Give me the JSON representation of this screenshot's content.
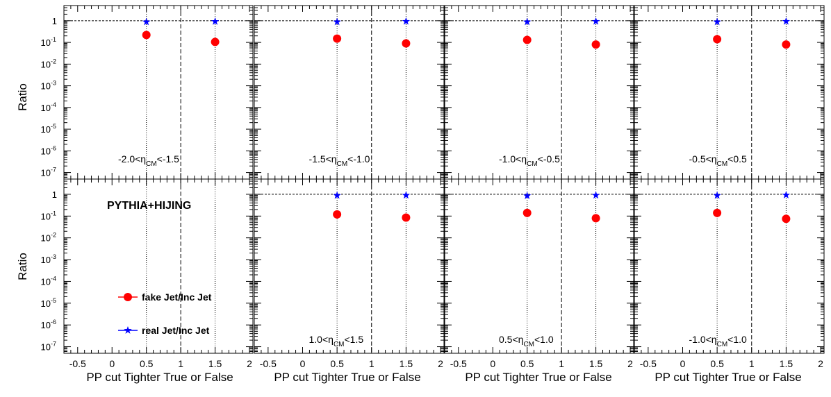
{
  "chart_data": {
    "type": "scatter",
    "layout": "2 rows x 4 columns, shared axes",
    "xlabel": "PP cut Tighter True or False",
    "ylabel": "Ratio",
    "xlim": [
      -0.7,
      2.05
    ],
    "ylim": [
      5e-08,
      5
    ],
    "xscale": "linear",
    "yscale": "log",
    "xticks": [
      -0.5,
      0,
      0.5,
      1,
      1.5,
      2
    ],
    "xtick_labels": [
      "-0.5",
      "0",
      "0.5",
      "1",
      "1.5",
      "2"
    ],
    "yticks": [
      {
        "base": "10",
        "exp": "-7",
        "value": 1e-07
      },
      {
        "base": "10",
        "exp": "-6",
        "value": 1e-06
      },
      {
        "base": "10",
        "exp": "-5",
        "value": 1e-05
      },
      {
        "base": "10",
        "exp": "-4",
        "value": 0.0001
      },
      {
        "base": "10",
        "exp": "-3",
        "value": 0.001
      },
      {
        "base": "10",
        "exp": "-2",
        "value": 0.01
      },
      {
        "base": "10",
        "exp": "-1",
        "value": 0.1
      },
      {
        "base": "1",
        "exp": "",
        "value": 1
      }
    ],
    "reference_line_y": 1,
    "dotted_vlines": [
      0.5,
      1.5
    ],
    "dashed_vlines": [
      1
    ],
    "generator_label": "PYTHIA+HIJING",
    "legend": {
      "placement": "bottom-left panel",
      "entries": [
        {
          "label": "fake Jet/Inc Jet",
          "marker": "circle",
          "color": "#ff0000"
        },
        {
          "label": "real Jet/Inc Jet",
          "marker": "star",
          "color": "#0000ff"
        }
      ]
    },
    "panels": [
      {
        "row": 0,
        "col": 0,
        "eta_label": {
          "lo": "-2.0",
          "hi": "-1.5"
        },
        "label_pos": "upper",
        "series": [
          {
            "name": "fake Jet/Inc Jet",
            "x": [
              0.5,
              1.5
            ],
            "y": [
              0.22,
              0.105
            ]
          },
          {
            "name": "real Jet/Inc Jet",
            "x": [
              0.5,
              1.5
            ],
            "y": [
              0.88,
              0.92
            ]
          }
        ]
      },
      {
        "row": 0,
        "col": 1,
        "eta_label": {
          "lo": "-1.5",
          "hi": "-1.0"
        },
        "label_pos": "upper",
        "series": [
          {
            "name": "fake Jet/Inc Jet",
            "x": [
              0.5,
              1.5
            ],
            "y": [
              0.15,
              0.09
            ]
          },
          {
            "name": "real Jet/Inc Jet",
            "x": [
              0.5,
              1.5
            ],
            "y": [
              0.88,
              0.93
            ]
          }
        ]
      },
      {
        "row": 0,
        "col": 2,
        "eta_label": {
          "lo": "-1.0",
          "hi": "-0.5"
        },
        "label_pos": "upper",
        "series": [
          {
            "name": "fake Jet/Inc Jet",
            "x": [
              0.5,
              1.5
            ],
            "y": [
              0.13,
              0.08
            ]
          },
          {
            "name": "real Jet/Inc Jet",
            "x": [
              0.5,
              1.5
            ],
            "y": [
              0.88,
              0.93
            ]
          }
        ]
      },
      {
        "row": 0,
        "col": 3,
        "eta_label": {
          "lo": "-0.5",
          "hi": "0.5"
        },
        "label_pos": "upper",
        "series": [
          {
            "name": "fake Jet/Inc Jet",
            "x": [
              0.5,
              1.5
            ],
            "y": [
              0.14,
              0.08
            ]
          },
          {
            "name": "real Jet/Inc Jet",
            "x": [
              0.5,
              1.5
            ],
            "y": [
              0.88,
              0.93
            ]
          }
        ]
      },
      {
        "row": 1,
        "col": 0,
        "eta_label": null,
        "label_pos": null,
        "series": []
      },
      {
        "row": 1,
        "col": 1,
        "eta_label": {
          "lo": "1.0",
          "hi": "1.5"
        },
        "label_pos": "lower",
        "series": [
          {
            "name": "fake Jet/Inc Jet",
            "x": [
              0.5,
              1.5
            ],
            "y": [
              0.12,
              0.085
            ]
          },
          {
            "name": "real Jet/Inc Jet",
            "x": [
              0.5,
              1.5
            ],
            "y": [
              0.88,
              0.9
            ]
          }
        ]
      },
      {
        "row": 1,
        "col": 2,
        "eta_label": {
          "lo": "0.5",
          "hi": "1.0"
        },
        "label_pos": "lower",
        "series": [
          {
            "name": "fake Jet/Inc Jet",
            "x": [
              0.5,
              1.5
            ],
            "y": [
              0.14,
              0.08
            ]
          },
          {
            "name": "real Jet/Inc Jet",
            "x": [
              0.5,
              1.5
            ],
            "y": [
              0.85,
              0.9
            ]
          }
        ]
      },
      {
        "row": 1,
        "col": 3,
        "eta_label": {
          "lo": "-1.0",
          "hi": "1.0"
        },
        "label_pos": "lower",
        "series": [
          {
            "name": "fake Jet/Inc Jet",
            "x": [
              0.5,
              1.5
            ],
            "y": [
              0.14,
              0.075
            ]
          },
          {
            "name": "real Jet/Inc Jet",
            "x": [
              0.5,
              1.5
            ],
            "y": [
              0.88,
              0.92
            ]
          }
        ]
      }
    ]
  }
}
